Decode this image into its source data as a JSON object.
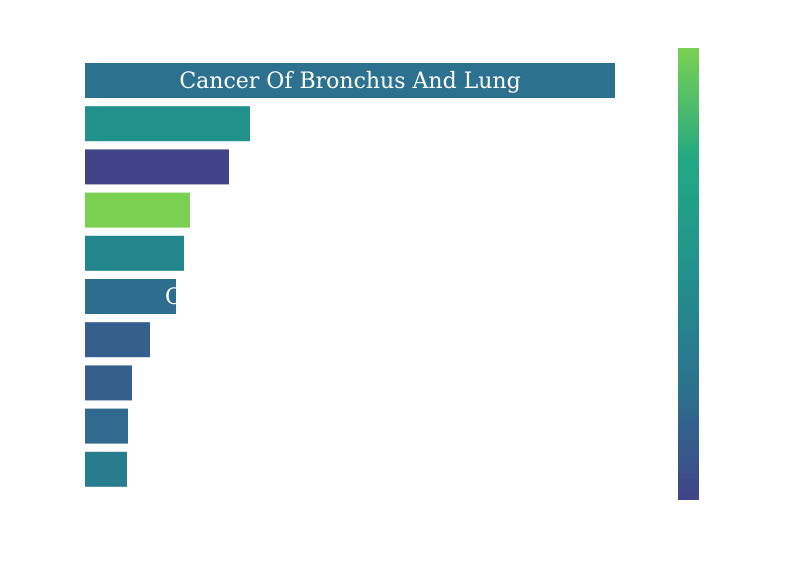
{
  "chart_data": {
    "type": "bar",
    "orientation": "horizontal",
    "bars": [
      {
        "label": "Cancer Of Bronchus And Lung",
        "value": 530,
        "color": "#2c728e"
      },
      {
        "label": "",
        "value": 165,
        "color": "#21918c"
      },
      {
        "label": "",
        "value": 144,
        "color": "#414487"
      },
      {
        "label": "",
        "value": 105,
        "color": "#7ad151"
      },
      {
        "label": "",
        "value": 99,
        "color": "#23868d"
      },
      {
        "label": "C",
        "value": 91,
        "color": "#2d6e8e"
      },
      {
        "label": "",
        "value": 65,
        "color": "#355f8d"
      },
      {
        "label": "",
        "value": 47,
        "color": "#355f8d"
      },
      {
        "label": "",
        "value": 43,
        "color": "#306a8e"
      },
      {
        "label": "",
        "value": 42,
        "color": "#297b8e"
      }
    ],
    "xlim": [
      0,
      530
    ],
    "grid": false,
    "legend": "none",
    "colorbar": {
      "position": "right",
      "colors": [
        "#414487",
        "#2c728e",
        "#21918c",
        "#22a884",
        "#7ad151"
      ]
    }
  }
}
